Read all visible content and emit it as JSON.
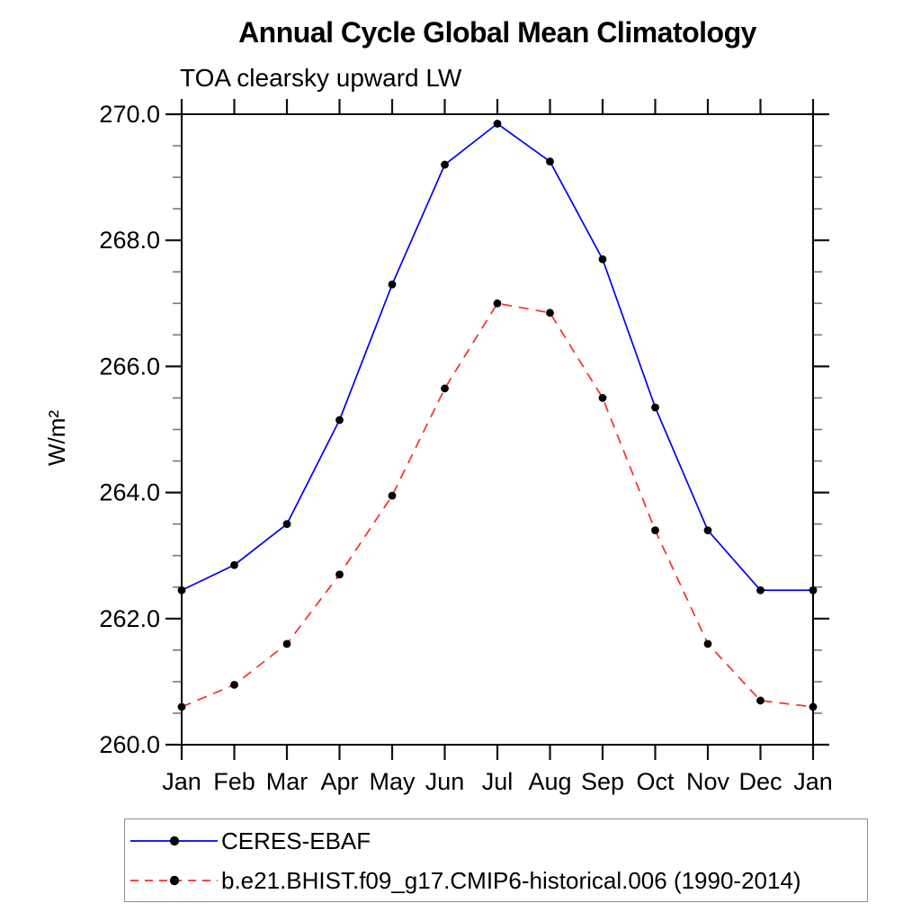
{
  "chart_data": {
    "type": "line",
    "title": "Annual Cycle Global Mean Climatology",
    "subtitle": "TOA clearsky upward LW",
    "ylabel": "W/m²",
    "xlabel": "",
    "categories": [
      "Jan",
      "Feb",
      "Mar",
      "Apr",
      "May",
      "Jun",
      "Jul",
      "Aug",
      "Sep",
      "Oct",
      "Nov",
      "Dec",
      "Jan"
    ],
    "ylim": [
      260.0,
      270.0
    ],
    "yticks_major": [
      260.0,
      262.0,
      264.0,
      266.0,
      268.0,
      270.0
    ],
    "ytick_labels": [
      "260.0",
      "262.0",
      "264.0",
      "266.0",
      "268.0",
      "270.0"
    ],
    "ytick_minor_step": 0.5,
    "grid": false,
    "legend_position": "bottom-left-box",
    "series": [
      {
        "name": "CERES-EBAF",
        "color": "#0000f0",
        "style": "solid",
        "marker": "black-dot",
        "values": [
          262.45,
          262.85,
          263.5,
          265.15,
          267.3,
          269.2,
          269.85,
          269.25,
          267.7,
          265.35,
          263.4,
          262.45,
          262.45
        ]
      },
      {
        "name": "b.e21.BHIST.f09_g17.CMIP6-historical.006 (1990-2014)",
        "color": "#f62d2d",
        "style": "dashed",
        "marker": "black-dot",
        "values": [
          260.6,
          260.95,
          261.6,
          262.7,
          263.95,
          265.65,
          267.0,
          266.85,
          265.5,
          263.4,
          261.6,
          260.7,
          260.6
        ]
      }
    ]
  },
  "legend": {
    "entries": [
      {
        "label": "CERES-EBAF",
        "color": "#0000f0",
        "dash": "solid",
        "marker_color": "#000000"
      },
      {
        "label": "b.e21.BHIST.f09_g17.CMIP6-historical.006 (1990-2014)",
        "color": "#f62d2d",
        "dash": "dashed",
        "marker_color": "#000000"
      }
    ]
  },
  "colors": {
    "axis_frame": "#000000",
    "major_tick": "#111111",
    "minor_tick": "#777777",
    "text": "#000000",
    "background": "#ffffff",
    "legend_border": "#8f8f8f"
  }
}
